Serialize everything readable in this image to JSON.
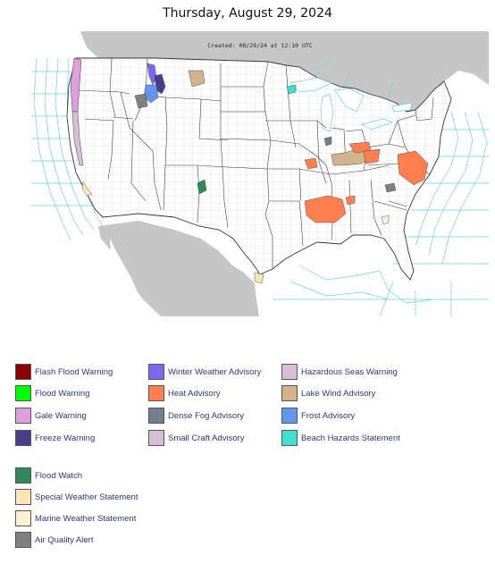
{
  "page": {
    "title": "Thursday, August 29, 2024"
  },
  "map": {
    "created_label": "Created: 08/29/24 at 12:10 UTC"
  },
  "legend": {
    "warnings": [
      {
        "label": "Flash Flood Warning",
        "color": "#8b0000"
      },
      {
        "label": "Winter Weather Advisory",
        "color": "#7b68ee"
      },
      {
        "label": "Hazardous Seas Warning",
        "color": "#d8bfd8"
      },
      {
        "label": "Flood Warning",
        "color": "#00ff00"
      },
      {
        "label": "Heat Advisory",
        "color": "#ff7f50"
      },
      {
        "label": "Lake Wind Advisory",
        "color": "#d2b48c"
      },
      {
        "label": "Gale Warning",
        "color": "#dda0dd"
      },
      {
        "label": "Dense Fog Advisory",
        "color": "#708090"
      },
      {
        "label": "Frost Advisory",
        "color": "#6495ed"
      },
      {
        "label": "Freeze Warning",
        "color": "#483d8b"
      },
      {
        "label": "Small Craft Advisory",
        "color": "#d8bfd8"
      },
      {
        "label": "Beach Hazards Statement",
        "color": "#40e0d0"
      }
    ],
    "watches": [
      {
        "label": "Flood Watch",
        "color": "#2e8b57"
      },
      {
        "label": "Special Weather Statement",
        "color": "#ffe4b5"
      },
      {
        "label": "Marine Weather Statement",
        "color": "#ffefd5"
      },
      {
        "label": "Air Quality Alert",
        "color": "#808080"
      }
    ]
  }
}
